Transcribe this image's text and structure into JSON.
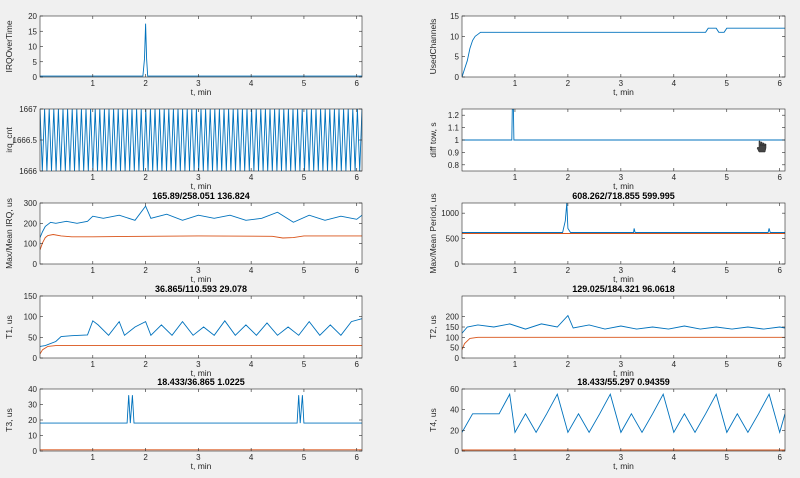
{
  "chart_data": [
    {
      "id": "irq_over_time",
      "type": "line",
      "title": "",
      "xlabel": "t, min",
      "ylabel": "IRQOverTime",
      "xlim": [
        0,
        6.1
      ],
      "ylim": [
        0,
        20
      ],
      "xticks": [
        1,
        2,
        3,
        4,
        5,
        6
      ],
      "yticks": [
        0,
        5,
        10,
        15,
        20
      ],
      "series": [
        {
          "color": "#0072BD",
          "points": [
            [
              0,
              0.3
            ],
            [
              1.95,
              0.3
            ],
            [
              1.98,
              6
            ],
            [
              2.0,
              17.5
            ],
            [
              2.02,
              6
            ],
            [
              2.04,
              0.3
            ],
            [
              6.1,
              0.3
            ]
          ]
        }
      ]
    },
    {
      "id": "used_channels",
      "type": "line",
      "title": "",
      "xlabel": "t, min",
      "ylabel": "UsedChannels",
      "xlim": [
        0,
        6.1
      ],
      "ylim": [
        0,
        15
      ],
      "xticks": [
        1,
        2,
        3,
        4,
        5,
        6
      ],
      "yticks": [
        0,
        5,
        10,
        15
      ],
      "series": [
        {
          "color": "#0072BD",
          "points": [
            [
              0,
              0
            ],
            [
              0.05,
              2
            ],
            [
              0.1,
              4
            ],
            [
              0.15,
              7
            ],
            [
              0.2,
              9
            ],
            [
              0.25,
              10
            ],
            [
              0.3,
              10.5
            ],
            [
              0.35,
              11
            ],
            [
              4.6,
              11
            ],
            [
              4.65,
              12
            ],
            [
              4.8,
              12
            ],
            [
              4.85,
              11
            ],
            [
              4.95,
              11
            ],
            [
              5.0,
              12
            ],
            [
              6.1,
              12
            ]
          ]
        }
      ]
    },
    {
      "id": "irq_cnt",
      "type": "line",
      "title": "",
      "xlabel": "t, min",
      "ylabel": "irq_cnt",
      "xlim": [
        0,
        6.1
      ],
      "ylim": [
        1666,
        1667
      ],
      "xticks": [
        1,
        2,
        3,
        4,
        5,
        6
      ],
      "yticks": [
        1666,
        1666.5,
        1667
      ],
      "series": [
        {
          "color": "#0072BD",
          "pattern": "oscillation",
          "range": [
            1666,
            1667
          ],
          "cycles": 70
        }
      ]
    },
    {
      "id": "diff_tow",
      "type": "line",
      "title": "",
      "xlabel": "t, min",
      "ylabel": "diff tow, s",
      "xlim": [
        0,
        6.1
      ],
      "ylim": [
        0.75,
        1.25
      ],
      "xticks": [
        1,
        2,
        3,
        4,
        5,
        6
      ],
      "yticks": [
        0.8,
        0.9,
        1,
        1.1,
        1.2
      ],
      "series": [
        {
          "color": "#0072BD",
          "points": [
            [
              0,
              1
            ],
            [
              0.94,
              1
            ],
            [
              0.95,
              1.25
            ],
            [
              0.97,
              1.25
            ],
            [
              0.98,
              1
            ],
            [
              6.1,
              1
            ]
          ]
        }
      ]
    },
    {
      "id": "irq_time",
      "type": "line",
      "title": "165.89/258.051  136.824",
      "xlabel": "t, min",
      "ylabel": "Max/Mean IRQ, us",
      "xlim": [
        0,
        6.1
      ],
      "ylim": [
        0,
        300
      ],
      "xticks": [
        1,
        2,
        3,
        4,
        5,
        6
      ],
      "yticks": [
        0,
        100,
        200,
        300
      ],
      "series": [
        {
          "color": "#0072BD",
          "points": [
            [
              0,
              130
            ],
            [
              0.05,
              160
            ],
            [
              0.1,
              185
            ],
            [
              0.2,
              205
            ],
            [
              0.3,
              200
            ],
            [
              0.5,
              210
            ],
            [
              0.7,
              200
            ],
            [
              0.9,
              210
            ],
            [
              1.0,
              235
            ],
            [
              1.2,
              225
            ],
            [
              1.5,
              240
            ],
            [
              1.8,
              215
            ],
            [
              2.0,
              285
            ],
            [
              2.1,
              225
            ],
            [
              2.4,
              245
            ],
            [
              2.7,
              215
            ],
            [
              3.0,
              240
            ],
            [
              3.3,
              225
            ],
            [
              3.6,
              240
            ],
            [
              3.9,
              215
            ],
            [
              4.2,
              225
            ],
            [
              4.5,
              255
            ],
            [
              4.8,
              205
            ],
            [
              5.1,
              240
            ],
            [
              5.4,
              215
            ],
            [
              5.7,
              235
            ],
            [
              6.0,
              220
            ],
            [
              6.1,
              240
            ]
          ]
        },
        {
          "color": "#D95319",
          "points": [
            [
              0,
              70
            ],
            [
              0.05,
              105
            ],
            [
              0.1,
              130
            ],
            [
              0.15,
              140
            ],
            [
              0.25,
              145
            ],
            [
              0.4,
              138
            ],
            [
              0.6,
              134
            ],
            [
              1.0,
              134
            ],
            [
              2.0,
              136
            ],
            [
              3.0,
              138
            ],
            [
              4.4,
              136
            ],
            [
              4.6,
              128
            ],
            [
              4.8,
              130
            ],
            [
              5.0,
              138
            ],
            [
              6.1,
              138
            ]
          ]
        }
      ]
    },
    {
      "id": "max_mean_period",
      "type": "line",
      "title": "608.262/718.855  599.995",
      "xlabel": "t, min",
      "ylabel": "Max/Mean Period, us",
      "xlim": [
        0,
        6.1
      ],
      "ylim": [
        0,
        1200
      ],
      "xticks": [
        1,
        2,
        3,
        4,
        5,
        6
      ],
      "yticks": [
        0,
        500,
        1000
      ],
      "series": [
        {
          "color": "#0072BD",
          "points": [
            [
              0,
              620
            ],
            [
              1.9,
              620
            ],
            [
              1.95,
              850
            ],
            [
              1.98,
              1200
            ],
            [
              2.0,
              700
            ],
            [
              2.05,
              620
            ],
            [
              3.24,
              620
            ],
            [
              3.25,
              700
            ],
            [
              3.27,
              620
            ],
            [
              5.78,
              620
            ],
            [
              5.8,
              700
            ],
            [
              5.82,
              620
            ],
            [
              6.1,
              620
            ]
          ]
        },
        {
          "color": "#D95319",
          "points": [
            [
              0,
              600
            ],
            [
              6.1,
              600
            ]
          ]
        }
      ]
    },
    {
      "id": "t1",
      "type": "line",
      "title": "36.865/110.593  29.078",
      "xlabel": "t, min",
      "ylabel": "T1, us",
      "xlim": [
        0,
        6.1
      ],
      "ylim": [
        0,
        150
      ],
      "xticks": [
        1,
        2,
        3,
        4,
        5,
        6
      ],
      "yticks": [
        0,
        50,
        100,
        150
      ],
      "series": [
        {
          "color": "#0072BD",
          "points": [
            [
              0,
              28
            ],
            [
              0.1,
              30
            ],
            [
              0.3,
              40
            ],
            [
              0.4,
              52
            ],
            [
              0.6,
              54
            ],
            [
              0.9,
              56
            ],
            [
              1.0,
              90
            ],
            [
              1.1,
              80
            ],
            [
              1.3,
              55
            ],
            [
              1.5,
              88
            ],
            [
              1.6,
              55
            ],
            [
              1.8,
              75
            ],
            [
              2.0,
              88
            ],
            [
              2.1,
              55
            ],
            [
              2.3,
              80
            ],
            [
              2.5,
              55
            ],
            [
              2.7,
              88
            ],
            [
              2.9,
              55
            ],
            [
              3.1,
              75
            ],
            [
              3.3,
              55
            ],
            [
              3.5,
              90
            ],
            [
              3.7,
              55
            ],
            [
              3.9,
              80
            ],
            [
              4.1,
              55
            ],
            [
              4.3,
              85
            ],
            [
              4.5,
              55
            ],
            [
              4.7,
              75
            ],
            [
              4.9,
              55
            ],
            [
              5.1,
              88
            ],
            [
              5.3,
              55
            ],
            [
              5.5,
              80
            ],
            [
              5.7,
              55
            ],
            [
              5.9,
              88
            ],
            [
              6.1,
              95
            ]
          ]
        },
        {
          "color": "#D95319",
          "points": [
            [
              0,
              10
            ],
            [
              0.05,
              20
            ],
            [
              0.15,
              28
            ],
            [
              0.3,
              30
            ],
            [
              6.1,
              30
            ]
          ]
        }
      ]
    },
    {
      "id": "t2",
      "type": "line",
      "title": "129.025/184.321  96.0618",
      "xlabel": "t, min",
      "ylabel": "T2, us",
      "xlim": [
        0,
        6.1
      ],
      "ylim": [
        0,
        300
      ],
      "xticks": [
        1,
        2,
        3,
        4,
        5,
        6
      ],
      "yticks": [
        0,
        50,
        100,
        150,
        200
      ],
      "series": [
        {
          "color": "#0072BD",
          "points": [
            [
              0,
              120
            ],
            [
              0.1,
              150
            ],
            [
              0.3,
              160
            ],
            [
              0.6,
              150
            ],
            [
              0.9,
              165
            ],
            [
              1.2,
              140
            ],
            [
              1.5,
              165
            ],
            [
              1.8,
              150
            ],
            [
              2.0,
              205
            ],
            [
              2.1,
              145
            ],
            [
              2.4,
              160
            ],
            [
              2.7,
              140
            ],
            [
              3.0,
              155
            ],
            [
              3.3,
              140
            ],
            [
              3.6,
              150
            ],
            [
              3.9,
              140
            ],
            [
              4.2,
              155
            ],
            [
              4.5,
              140
            ],
            [
              4.8,
              150
            ],
            [
              5.1,
              140
            ],
            [
              5.4,
              150
            ],
            [
              5.7,
              140
            ],
            [
              6.0,
              150
            ],
            [
              6.1,
              145
            ]
          ]
        },
        {
          "color": "#D95319",
          "points": [
            [
              0,
              40
            ],
            [
              0.05,
              70
            ],
            [
              0.15,
              95
            ],
            [
              0.3,
              100
            ],
            [
              6.1,
              100
            ]
          ]
        }
      ]
    },
    {
      "id": "t3",
      "type": "line",
      "title": "18.433/36.865  1.0225",
      "xlabel": "t, min",
      "ylabel": "T3, us",
      "xlim": [
        0,
        6.1
      ],
      "ylim": [
        0,
        40
      ],
      "xticks": [
        1,
        2,
        3,
        4,
        5,
        6
      ],
      "yticks": [
        0,
        10,
        20,
        30,
        40
      ],
      "series": [
        {
          "color": "#0072BD",
          "points": [
            [
              0,
              18
            ],
            [
              1.65,
              18
            ],
            [
              1.68,
              36
            ],
            [
              1.71,
              18
            ],
            [
              1.75,
              36
            ],
            [
              1.78,
              18
            ],
            [
              4.87,
              18
            ],
            [
              4.9,
              36
            ],
            [
              4.93,
              18
            ],
            [
              4.97,
              36
            ],
            [
              5.0,
              18
            ],
            [
              6.1,
              18
            ]
          ]
        },
        {
          "color": "#D95319",
          "points": [
            [
              0,
              0.8
            ],
            [
              6.1,
              0.8
            ]
          ]
        }
      ]
    },
    {
      "id": "t4",
      "type": "line",
      "title": "18.433/55.297  0.94359",
      "xlabel": "t, min",
      "ylabel": "T4, us",
      "xlim": [
        0,
        6.1
      ],
      "ylim": [
        0,
        60
      ],
      "xticks": [
        1,
        2,
        3,
        4,
        5,
        6
      ],
      "yticks": [
        0,
        20,
        40,
        60
      ],
      "series": [
        {
          "color": "#0072BD",
          "points": [
            [
              0,
              18
            ],
            [
              0.2,
              36
            ],
            [
              0.5,
              36
            ],
            [
              0.7,
              36
            ],
            [
              0.9,
              55
            ],
            [
              1.0,
              18
            ],
            [
              1.2,
              36
            ],
            [
              1.4,
              18
            ],
            [
              1.6,
              36
            ],
            [
              1.8,
              55
            ],
            [
              2.0,
              18
            ],
            [
              2.2,
              36
            ],
            [
              2.4,
              18
            ],
            [
              2.6,
              36
            ],
            [
              2.8,
              55
            ],
            [
              3.0,
              18
            ],
            [
              3.2,
              36
            ],
            [
              3.4,
              18
            ],
            [
              3.6,
              36
            ],
            [
              3.8,
              55
            ],
            [
              4.0,
              18
            ],
            [
              4.2,
              36
            ],
            [
              4.4,
              18
            ],
            [
              4.6,
              36
            ],
            [
              4.8,
              55
            ],
            [
              5.0,
              18
            ],
            [
              5.2,
              36
            ],
            [
              5.4,
              18
            ],
            [
              5.6,
              36
            ],
            [
              5.8,
              55
            ],
            [
              6.0,
              18
            ],
            [
              6.1,
              36
            ]
          ]
        },
        {
          "color": "#D95319",
          "points": [
            [
              0,
              1
            ],
            [
              6.1,
              1
            ]
          ]
        }
      ]
    }
  ]
}
